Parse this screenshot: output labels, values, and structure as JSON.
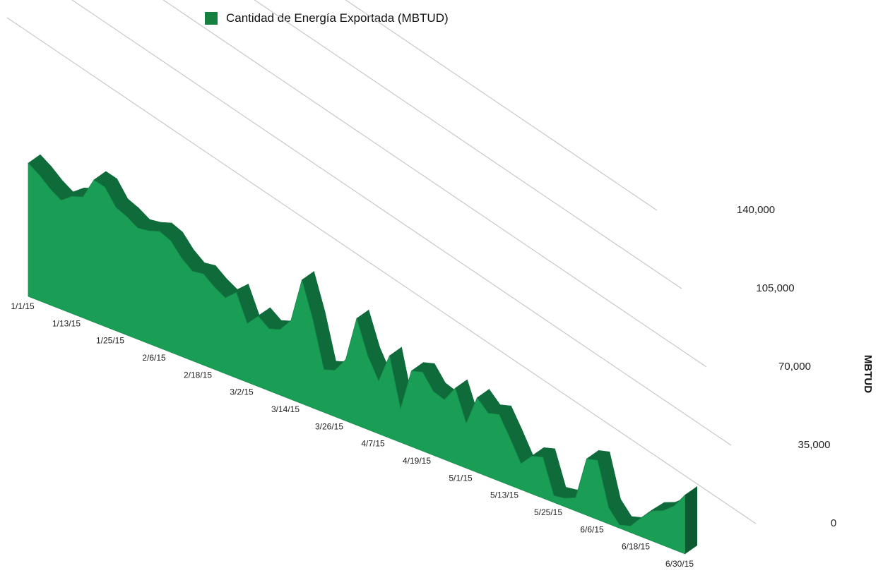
{
  "chart_data": {
    "type": "area",
    "title": "",
    "legend": {
      "position": "top",
      "entries": [
        "Cantidad de Energía Exportada (MBTUD)"
      ]
    },
    "ylabel": "MBTUD",
    "xlabel": "",
    "ylim": [
      0,
      140000
    ],
    "grid": true,
    "yticks": [
      {
        "value": 0,
        "label": "0"
      },
      {
        "value": 35000,
        "label": "35,000"
      },
      {
        "value": 70000,
        "label": "70,000"
      },
      {
        "value": 105000,
        "label": "105,000"
      },
      {
        "value": 140000,
        "label": "140,000"
      }
    ],
    "xtick_labels": [
      "1/1/15",
      "1/13/15",
      "1/25/15",
      "2/6/15",
      "2/18/15",
      "3/2/15",
      "3/14/15",
      "3/26/15",
      "4/7/15",
      "4/19/15",
      "5/1/15",
      "5/13/15",
      "5/25/15",
      "6/6/15",
      "6/18/15",
      "6/30/15"
    ],
    "series": [
      {
        "name": "Cantidad de Energía Exportada (MBTUD)",
        "color": "#1a9e55",
        "x": [
          "1/1/15",
          "1/4/15",
          "1/7/15",
          "1/10/15",
          "1/13/15",
          "1/16/15",
          "1/19/15",
          "1/22/15",
          "1/25/15",
          "1/28/15",
          "1/31/15",
          "2/3/15",
          "2/6/15",
          "2/9/15",
          "2/12/15",
          "2/15/15",
          "2/18/15",
          "2/21/15",
          "2/24/15",
          "2/27/15",
          "3/2/15",
          "3/5/15",
          "3/8/15",
          "3/11/15",
          "3/14/15",
          "3/17/15",
          "3/20/15",
          "3/23/15",
          "3/26/15",
          "3/29/15",
          "4/1/15",
          "4/4/15",
          "4/7/15",
          "4/10/15",
          "4/13/15",
          "4/16/15",
          "4/19/15",
          "4/22/15",
          "4/25/15",
          "4/28/15",
          "5/1/15",
          "5/4/15",
          "5/7/15",
          "5/10/15",
          "5/13/15",
          "5/16/15",
          "5/19/15",
          "5/22/15",
          "5/25/15",
          "5/28/15",
          "5/31/15",
          "6/3/15",
          "6/6/15",
          "6/9/15",
          "6/12/15",
          "6/15/15",
          "6/18/15",
          "6/21/15",
          "6/24/15",
          "6/27/15",
          "6/30/15"
        ],
        "values": [
          118000,
          112000,
          104000,
          98000,
          106000,
          110000,
          130000,
          128000,
          114000,
          110000,
          104000,
          106000,
          110000,
          106000,
          94000,
          86000,
          88000,
          80000,
          74000,
          84000,
          58000,
          70000,
          62000,
          66000,
          80000,
          126000,
          90000,
          44000,
          48000,
          64000,
          112000,
          78000,
          56000,
          88000,
          36000,
          82000,
          86000,
          70000,
          66000,
          84000,
          50000,
          84000,
          72000,
          76000,
          54000,
          30000,
          44000,
          48000,
          8000,
          10000,
          16000,
          68000,
          72000,
          20000,
          4000,
          8000,
          24000,
          38000,
          44000,
          56000,
          76000
        ]
      }
    ]
  }
}
